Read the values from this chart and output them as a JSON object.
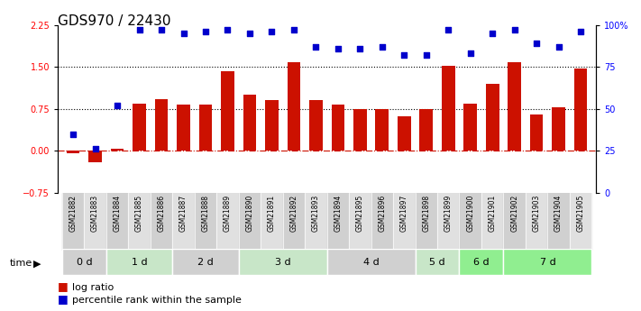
{
  "title": "GDS970 / 22430",
  "samples": [
    "GSM21882",
    "GSM21883",
    "GSM21884",
    "GSM21885",
    "GSM21886",
    "GSM21887",
    "GSM21888",
    "GSM21889",
    "GSM21890",
    "GSM21891",
    "GSM21892",
    "GSM21893",
    "GSM21894",
    "GSM21895",
    "GSM21896",
    "GSM21897",
    "GSM21898",
    "GSM21899",
    "GSM21900",
    "GSM21901",
    "GSM21902",
    "GSM21903",
    "GSM21904",
    "GSM21905"
  ],
  "log_ratio": [
    -0.05,
    -0.2,
    0.03,
    0.85,
    0.92,
    0.82,
    0.82,
    1.42,
    1.0,
    0.9,
    1.58,
    0.9,
    0.82,
    0.75,
    0.75,
    0.62,
    0.75,
    1.52,
    0.85,
    1.2,
    1.58,
    0.65,
    0.78,
    1.47
  ],
  "percentile_rank": [
    35,
    26,
    52,
    97,
    97,
    95,
    96,
    97,
    95,
    96,
    97,
    87,
    86,
    86,
    87,
    82,
    82,
    97,
    83,
    95,
    97,
    89,
    87,
    96
  ],
  "time_groups": [
    {
      "label": "0 d",
      "start": 0,
      "end": 2,
      "color": "#d0d0d0"
    },
    {
      "label": "1 d",
      "start": 2,
      "end": 5,
      "color": "#c8e6c8"
    },
    {
      "label": "2 d",
      "start": 5,
      "end": 8,
      "color": "#d0d0d0"
    },
    {
      "label": "3 d",
      "start": 8,
      "end": 12,
      "color": "#c8e6c8"
    },
    {
      "label": "4 d",
      "start": 12,
      "end": 16,
      "color": "#d0d0d0"
    },
    {
      "label": "5 d",
      "start": 16,
      "end": 18,
      "color": "#c8e6c8"
    },
    {
      "label": "6 d",
      "start": 18,
      "end": 20,
      "color": "#90ee90"
    },
    {
      "label": "7 d",
      "start": 20,
      "end": 24,
      "color": "#90ee90"
    }
  ],
  "bar_color": "#cc1100",
  "dot_color": "#0000cc",
  "ylim_left": [
    -0.75,
    2.25
  ],
  "ylim_right": [
    0,
    100
  ],
  "yticks_left": [
    -0.75,
    0,
    0.75,
    1.5,
    2.25
  ],
  "yticks_right": [
    0,
    25,
    50,
    75,
    100
  ],
  "hlines": [
    0.75,
    1.5
  ],
  "background_color": "#ffffff",
  "title_fontsize": 11,
  "tick_fontsize": 7,
  "sample_fontsize": 5.5,
  "time_fontsize": 8,
  "legend_fontsize": 8
}
